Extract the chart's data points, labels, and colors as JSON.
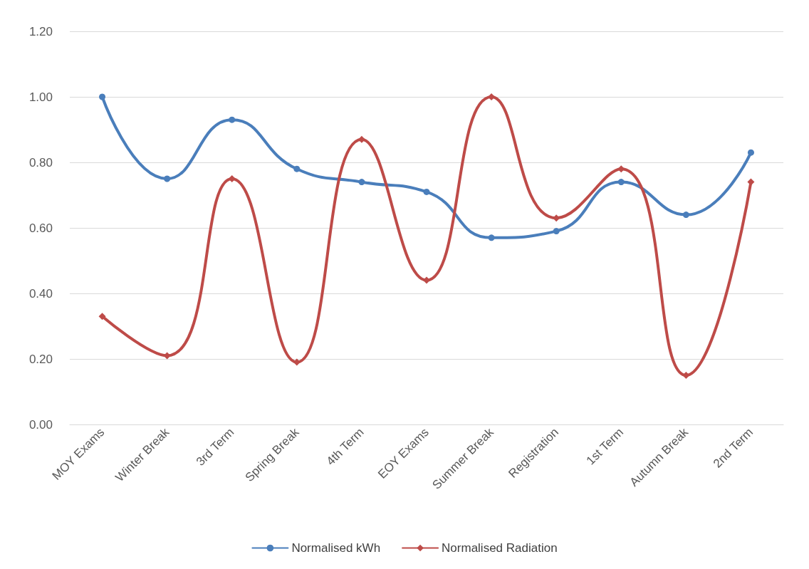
{
  "chart_data": {
    "type": "line",
    "categories": [
      "MOY Exams",
      "Winter Break",
      "3rd Term",
      "Spring Break",
      "4th Term",
      "EOY Exams",
      "Summer Break",
      "Registration",
      "1st Term",
      "Autumn Break",
      "2nd Term"
    ],
    "series": [
      {
        "name": "Normalised kWh",
        "color": "#4a7ebb",
        "marker": "circle",
        "values": [
          1.0,
          0.75,
          0.93,
          0.78,
          0.74,
          0.71,
          0.57,
          0.59,
          0.74,
          0.64,
          0.83
        ]
      },
      {
        "name": "Normalised Radiation",
        "color": "#be4b48",
        "marker": "diamond",
        "values": [
          0.33,
          0.21,
          0.75,
          0.19,
          0.87,
          0.44,
          1.0,
          0.63,
          0.78,
          0.15,
          0.74
        ]
      }
    ],
    "ylim": [
      0,
      1.2
    ],
    "yticks": [
      {
        "value": 0,
        "label": "0.00"
      },
      {
        "value": 0.2,
        "label": "0.20"
      },
      {
        "value": 0.4,
        "label": "0.40"
      },
      {
        "value": 0.6,
        "label": "0.60"
      },
      {
        "value": 0.8,
        "label": "0.80"
      },
      {
        "value": 1,
        "label": "1.00"
      },
      {
        "value": 1.2,
        "label": "1.20"
      }
    ],
    "grid": "y",
    "legend": "bottom"
  }
}
